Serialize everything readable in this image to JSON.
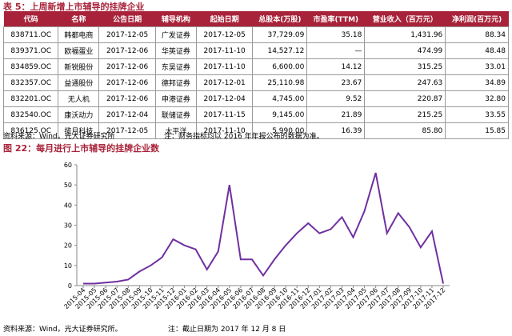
{
  "table": {
    "title": "表 5：上周新增上市辅导的挂牌企业",
    "headers": [
      "代码",
      "名称",
      "公告日期",
      "辅导机构",
      "起始日期",
      "总股本(万股)",
      "市盈率(TTM)",
      "营业收入（百万元）",
      "净利润(百万元)"
    ],
    "rows": [
      [
        "838711.OC",
        "韩都电商",
        "2017-12-05",
        "广发证券",
        "2017-12-05",
        "37,729.09",
        "35.18",
        "1,431.96",
        "88.34"
      ],
      [
        "839371.OC",
        "欧福蛋业",
        "2017-12-06",
        "华英证券",
        "2017-11-10",
        "14,527.12",
        "—",
        "474.99",
        "48.48"
      ],
      [
        "834859.OC",
        "新锐股份",
        "2017-12-06",
        "东吴证券",
        "2017-11-10",
        "6,600.00",
        "14.12",
        "315.25",
        "33.01"
      ],
      [
        "832357.OC",
        "益通股份",
        "2017-12-06",
        "德邦证券",
        "2017-12-01",
        "25,110.98",
        "23.67",
        "247.63",
        "34.89"
      ],
      [
        "832201.OC",
        "无人机",
        "2017-12-06",
        "申港证券",
        "2017-12-04",
        "4,745.00",
        "9.52",
        "220.87",
        "32.80"
      ],
      [
        "832540.OC",
        "康沃动力",
        "2017-12-04",
        "联储证券",
        "2017-11-15",
        "9,145.00",
        "21.89",
        "215.25",
        "33.55"
      ],
      [
        "836125.OC",
        "揽月科技",
        "2017-12-05",
        "太平洋",
        "2017-11-10",
        "5,990.00",
        "16.39",
        "85.80",
        "15.85"
      ]
    ],
    "source": "资料来源：Wind，光大证券研究所",
    "note": "注：财务指标均以 2016 年年报公布的数据为准。"
  },
  "chart_data": {
    "type": "line",
    "title": "图 22：每月进行上市辅导的挂牌企业数",
    "categories": [
      "2015-04",
      "2015-05",
      "2015-06",
      "2015-07",
      "2015-08",
      "2015-09",
      "2015-10",
      "2015-11",
      "2015-12",
      "2016-01",
      "2016-02",
      "2016-03",
      "2016-04",
      "2016-05",
      "2016-06",
      "2016-07",
      "2016-08",
      "2016-09",
      "2016-10",
      "2016-11",
      "2016-12",
      "2017-01",
      "2017-02",
      "2017-03",
      "2017-04",
      "2017-05",
      "2017-06",
      "2017-07",
      "2017-08",
      "2017-09",
      "2017-10",
      "2017-11",
      "2017-12"
    ],
    "values": [
      1,
      1,
      1.5,
      2,
      3,
      7,
      10,
      14,
      23,
      20,
      18,
      8,
      17,
      50,
      13,
      13,
      5,
      13,
      20,
      26,
      31,
      26,
      28,
      34,
      24,
      37,
      56,
      26,
      36,
      29,
      19,
      27,
      1
    ],
    "color": "#7030a0",
    "ylim": [
      0,
      60
    ],
    "yticks": [
      0,
      10,
      20,
      30,
      40,
      50,
      60
    ],
    "source": "资料来源：Wind，光大证券研究所。",
    "note": "注：截止日期为 2017 年 12 月 8 日"
  }
}
